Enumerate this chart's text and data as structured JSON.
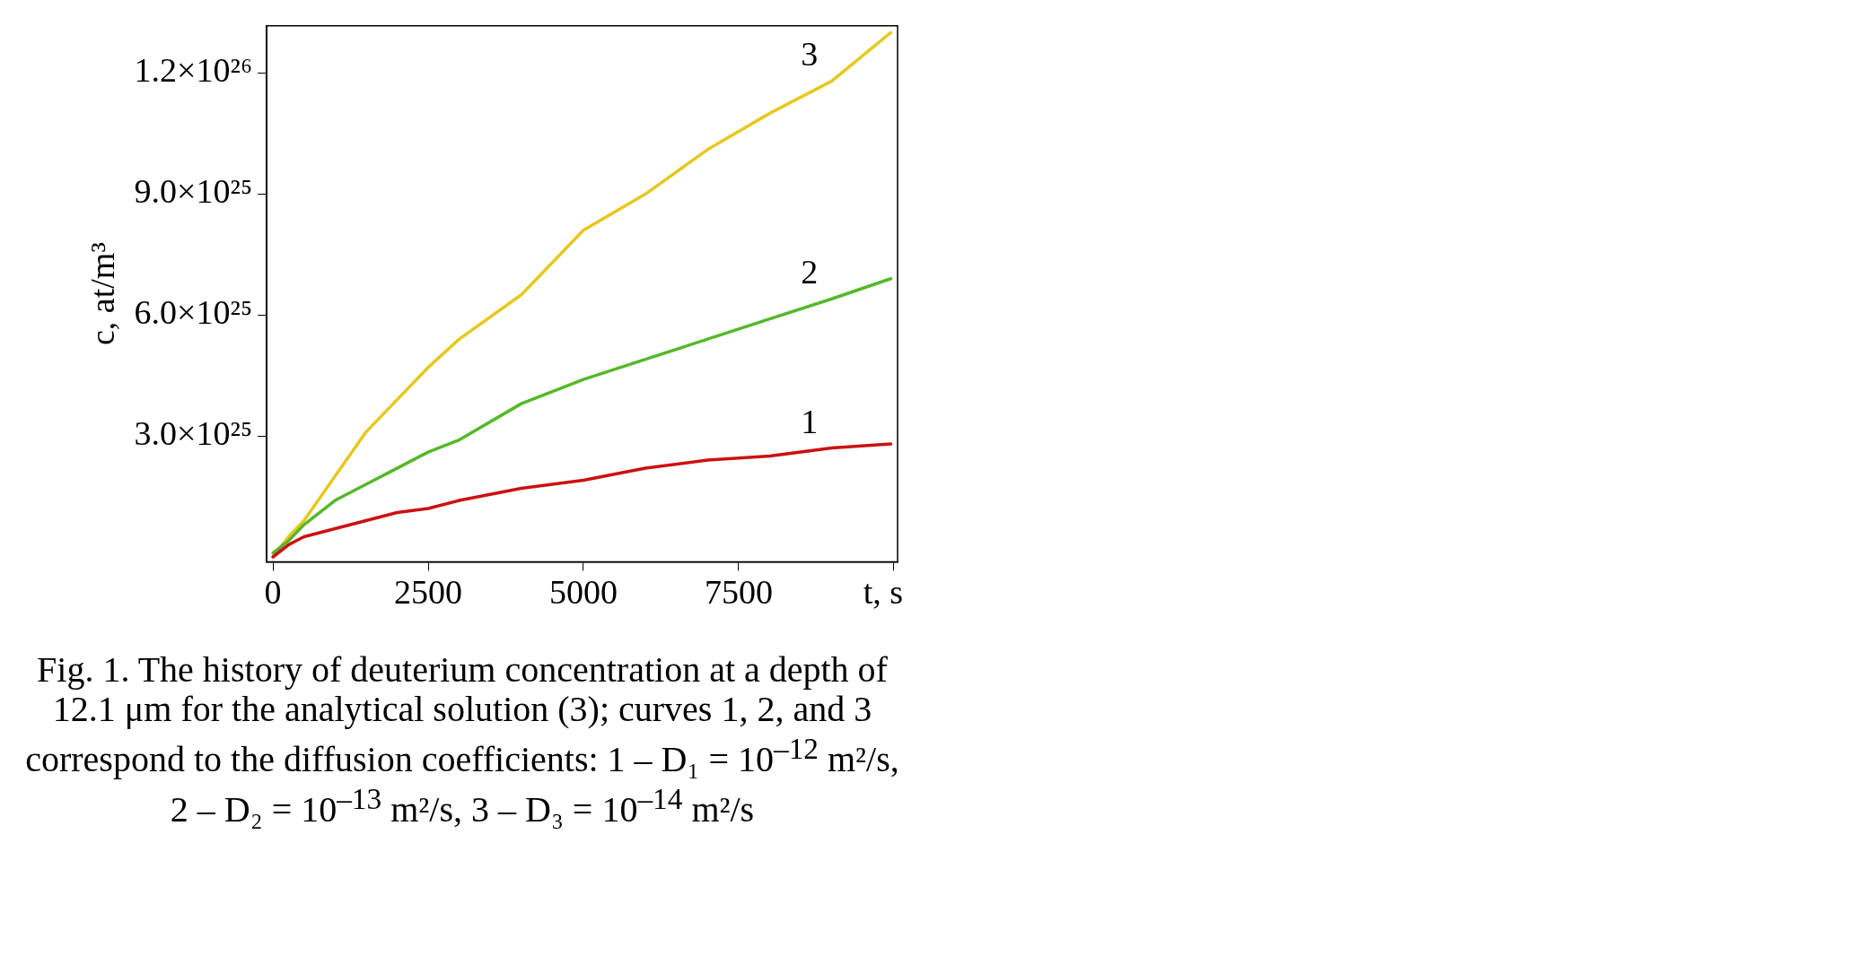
{
  "chart_data": {
    "type": "line",
    "xlabel": "t, s",
    "ylabel": "c, at/m³",
    "x": [
      0,
      250,
      500,
      1000,
      1500,
      2000,
      2500,
      3000,
      4000,
      5000,
      6000,
      7000,
      8000,
      9000,
      9950
    ],
    "series": [
      {
        "name": "1",
        "color": "#cc1010",
        "values": [
          0,
          3e+24,
          5e+24,
          7e+24,
          9e+24,
          1.1e+25,
          1.2e+25,
          1.4e+25,
          1.7e+25,
          1.9e+25,
          2.2e+25,
          2.4e+25,
          2.5e+25,
          2.7e+25,
          2.8e+25
        ]
      },
      {
        "name": "2",
        "color": "#55b82a",
        "values": [
          1e+24,
          4e+24,
          8e+24,
          1.4e+25,
          1.8e+25,
          2.2e+25,
          2.6e+25,
          2.9e+25,
          3.8e+25,
          4.4e+25,
          4.9e+25,
          5.4e+25,
          5.9e+25,
          6.4e+25,
          6.9e+25
        ]
      },
      {
        "name": "3",
        "color": "#e6c81e",
        "values": [
          0,
          5e+24,
          9e+24,
          2e+25,
          3.1e+25,
          3.9e+25,
          4.7e+25,
          5.4e+25,
          6.5e+25,
          8.1e+25,
          9e+25,
          1.01e+26,
          1.1e+26,
          1.18e+26,
          1.3e+26
        ]
      }
    ],
    "xlim": [
      -100,
      10060
    ],
    "xticks": [
      0,
      2500,
      5000,
      7500,
      {
        "value": 10000,
        "label": null
      }
    ],
    "ylim": [
      -1.2e+24,
      1.317e+26
    ],
    "yticks": [
      {
        "value": 3e+25,
        "label": "3.0×10²⁵"
      },
      {
        "value": 6e+25,
        "label": "6.0×10²⁵"
      },
      {
        "value": 9e+25,
        "label": "9.0×10²⁵"
      },
      {
        "value": 1.2e+26,
        "label": "1.2×10²⁶"
      }
    ],
    "grid": false,
    "legend": false,
    "marker": "none",
    "line_style": "solid",
    "annotations": [
      "Fig. 1. The history of deuterium concentration at a depth of 12.1 μm for the analytical solution (3); curves 1, 2, and 3 correspond to the diffusion coefficients: 1 – D₁ = 10$^{–12}$ m²/s, 2 – D₂ = 10$^{–13}$ m²/s, 3 – D₃ = 10$^{–14}$ m²/s"
    ]
  }
}
